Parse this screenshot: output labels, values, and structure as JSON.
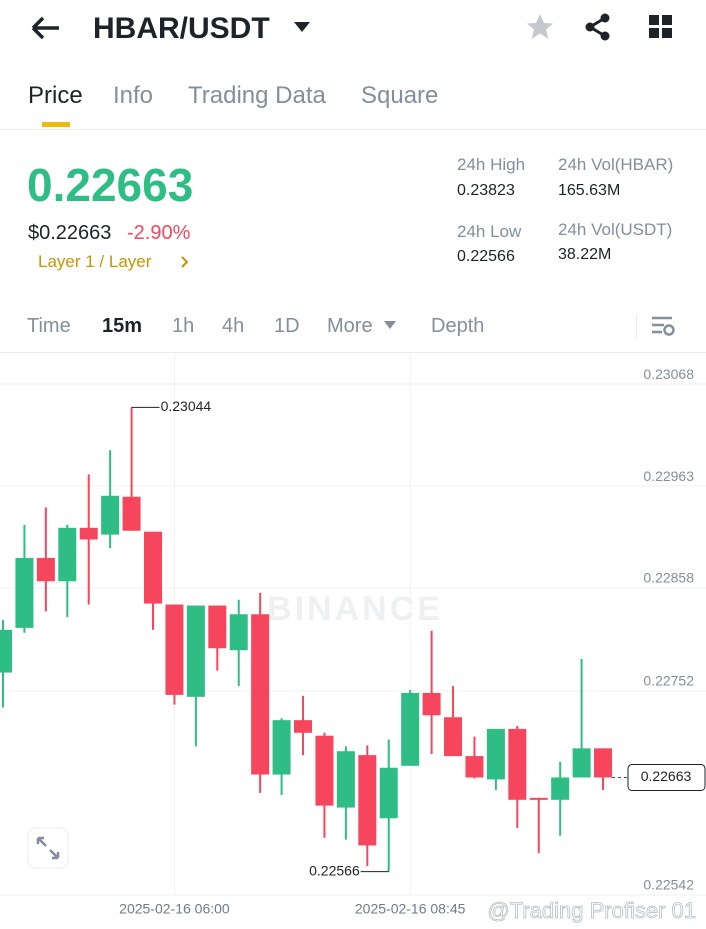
{
  "header": {
    "pair": "HBAR/USDT"
  },
  "tabs": [
    "Price",
    "Info",
    "Trading Data",
    "Square"
  ],
  "price": {
    "last": "0.22663",
    "usd": "$0.22663",
    "change": "-2.90%",
    "tag": "Layer 1 / Layer"
  },
  "stats": [
    {
      "label": "24h High",
      "value": "0.23823"
    },
    {
      "label": "24h Vol(HBAR)",
      "value": "165.63M"
    },
    {
      "label": "24h Low",
      "value": "0.22566"
    },
    {
      "label": "24h Vol(USDT)",
      "value": "38.22M"
    }
  ],
  "timeframes": [
    "Time",
    "15m",
    "1h",
    "4h",
    "1D",
    "More",
    "Depth"
  ],
  "watermark": "BINANCE",
  "credit": "@Trading Profiser 01",
  "chart_data": {
    "type": "candlestick",
    "categories": [
      null,
      null,
      null,
      null,
      null,
      null,
      null,
      null,
      "2025-02-16 06:00",
      null,
      null,
      null,
      null,
      null,
      null,
      null,
      null,
      null,
      null,
      "2025-02-16 08:45",
      null,
      null,
      null,
      null,
      null,
      null,
      null,
      null,
      null
    ],
    "open": [
      0.22771,
      0.22817,
      0.22889,
      0.22865,
      0.2292,
      0.22913,
      0.22952,
      0.22916,
      0.22841,
      0.22746,
      0.2284,
      0.22794,
      0.22831,
      0.22666,
      0.22722,
      0.22706,
      0.22632,
      0.22686,
      0.22621,
      0.22675,
      0.2275,
      0.22725,
      0.22685,
      0.22661,
      0.22713,
      0.22642,
      0.2264,
      0.22663,
      0.22693
    ],
    "high": [
      0.22825,
      0.22923,
      0.22941,
      0.22923,
      0.22975,
      0.23,
      0.23044,
      0.22916,
      0.22841,
      0.2284,
      0.2284,
      0.22846,
      0.22853,
      0.22724,
      0.22747,
      0.22709,
      0.22695,
      0.22696,
      0.22702,
      0.22753,
      0.22814,
      0.22757,
      0.22705,
      0.22713,
      0.22716,
      0.22642,
      0.22679,
      0.22785,
      0.22693
    ],
    "low": [
      0.22735,
      0.22812,
      0.22834,
      0.22828,
      0.22841,
      0.22899,
      0.22917,
      0.22815,
      0.22738,
      0.22695,
      0.22773,
      0.22757,
      0.22647,
      0.22645,
      0.22686,
      0.22601,
      0.22599,
      0.22572,
      0.22566,
      0.22675,
      0.22687,
      0.22685,
      0.22662,
      0.2265,
      0.22611,
      0.22585,
      0.22603,
      0.22663,
      0.2265
    ],
    "close": [
      0.22815,
      0.22889,
      0.22865,
      0.2292,
      0.22908,
      0.22953,
      0.22917,
      0.22842,
      0.22748,
      0.2284,
      0.22796,
      0.22831,
      0.22666,
      0.22722,
      0.22709,
      0.22634,
      0.2269,
      0.22593,
      0.22673,
      0.2275,
      0.22727,
      0.22685,
      0.22663,
      0.22713,
      0.2264,
      0.2264,
      0.22663,
      0.22693,
      0.22663
    ],
    "up_color": "#2ebd85",
    "down_color": "#f6465d",
    "ylim": [
      0.22542,
      0.23101
    ],
    "yticks": [
      0.23068,
      0.22963,
      0.22858,
      0.22752,
      0.22542
    ],
    "grid": true
  }
}
